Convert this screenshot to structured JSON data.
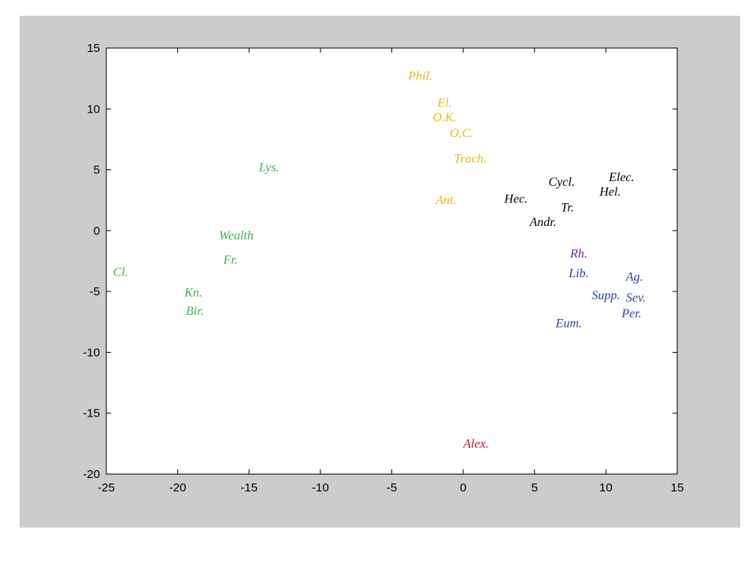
{
  "chart_data": {
    "type": "scatter",
    "title": "",
    "xlabel": "",
    "ylabel": "",
    "xlim": [
      -25,
      15
    ],
    "ylim": [
      -20,
      15
    ],
    "xticks": [
      -25,
      -20,
      -15,
      -10,
      -5,
      0,
      5,
      10,
      15
    ],
    "yticks": [
      -20,
      -15,
      -10,
      -5,
      0,
      5,
      10,
      15
    ],
    "grid": false,
    "colors": {
      "green": "#3cb44b",
      "gold": "#e8b90e",
      "black": "#000000",
      "purple": "#6a2aa0",
      "blue": "#2f3fa5",
      "red": "#c8101e"
    },
    "points": [
      {
        "label": "Phil.",
        "x": -3,
        "y": 12.7,
        "color": "gold"
      },
      {
        "label": "El.",
        "x": -1.3,
        "y": 10.5,
        "color": "gold"
      },
      {
        "label": "O.K.",
        "x": -1.3,
        "y": 9.3,
        "color": "gold"
      },
      {
        "label": "O.C.",
        "x": -0.1,
        "y": 8.0,
        "color": "gold"
      },
      {
        "label": "Trach.",
        "x": 0.5,
        "y": 5.9,
        "color": "gold"
      },
      {
        "label": "Ant.",
        "x": -1.2,
        "y": 2.5,
        "color": "gold"
      },
      {
        "label": "Lys.",
        "x": -13.6,
        "y": 5.2,
        "color": "green"
      },
      {
        "label": "Wealth",
        "x": -15.9,
        "y": -0.4,
        "color": "green"
      },
      {
        "label": "Fr.",
        "x": -16.3,
        "y": -2.4,
        "color": "green"
      },
      {
        "label": "Cl.",
        "x": -24.0,
        "y": -3.4,
        "color": "green"
      },
      {
        "label": "Kn.",
        "x": -18.9,
        "y": -5.1,
        "color": "green"
      },
      {
        "label": "Bir.",
        "x": -18.8,
        "y": -6.6,
        "color": "green"
      },
      {
        "label": "Cycl.",
        "x": 6.9,
        "y": 4.0,
        "color": "black"
      },
      {
        "label": "Elec.",
        "x": 11.1,
        "y": 4.4,
        "color": "black"
      },
      {
        "label": "Hel.",
        "x": 10.3,
        "y": 3.2,
        "color": "black"
      },
      {
        "label": "Hec.",
        "x": 3.7,
        "y": 2.6,
        "color": "black"
      },
      {
        "label": "Tr.",
        "x": 7.3,
        "y": 1.9,
        "color": "black"
      },
      {
        "label": "Andr.",
        "x": 5.6,
        "y": 0.7,
        "color": "black"
      },
      {
        "label": "Rh.",
        "x": 8.1,
        "y": -1.9,
        "color": "purple"
      },
      {
        "label": "Lib.",
        "x": 8.1,
        "y": -3.5,
        "color": "blue"
      },
      {
        "label": "Ag.",
        "x": 12.0,
        "y": -3.8,
        "color": "blue"
      },
      {
        "label": "Supp.",
        "x": 10.0,
        "y": -5.3,
        "color": "blue"
      },
      {
        "label": "Sev.",
        "x": 12.1,
        "y": -5.5,
        "color": "blue"
      },
      {
        "label": "Per.",
        "x": 11.8,
        "y": -6.8,
        "color": "blue"
      },
      {
        "label": "Eum.",
        "x": 7.4,
        "y": -7.6,
        "color": "blue"
      },
      {
        "label": "Alex.",
        "x": 0.9,
        "y": -17.5,
        "color": "red"
      }
    ]
  }
}
